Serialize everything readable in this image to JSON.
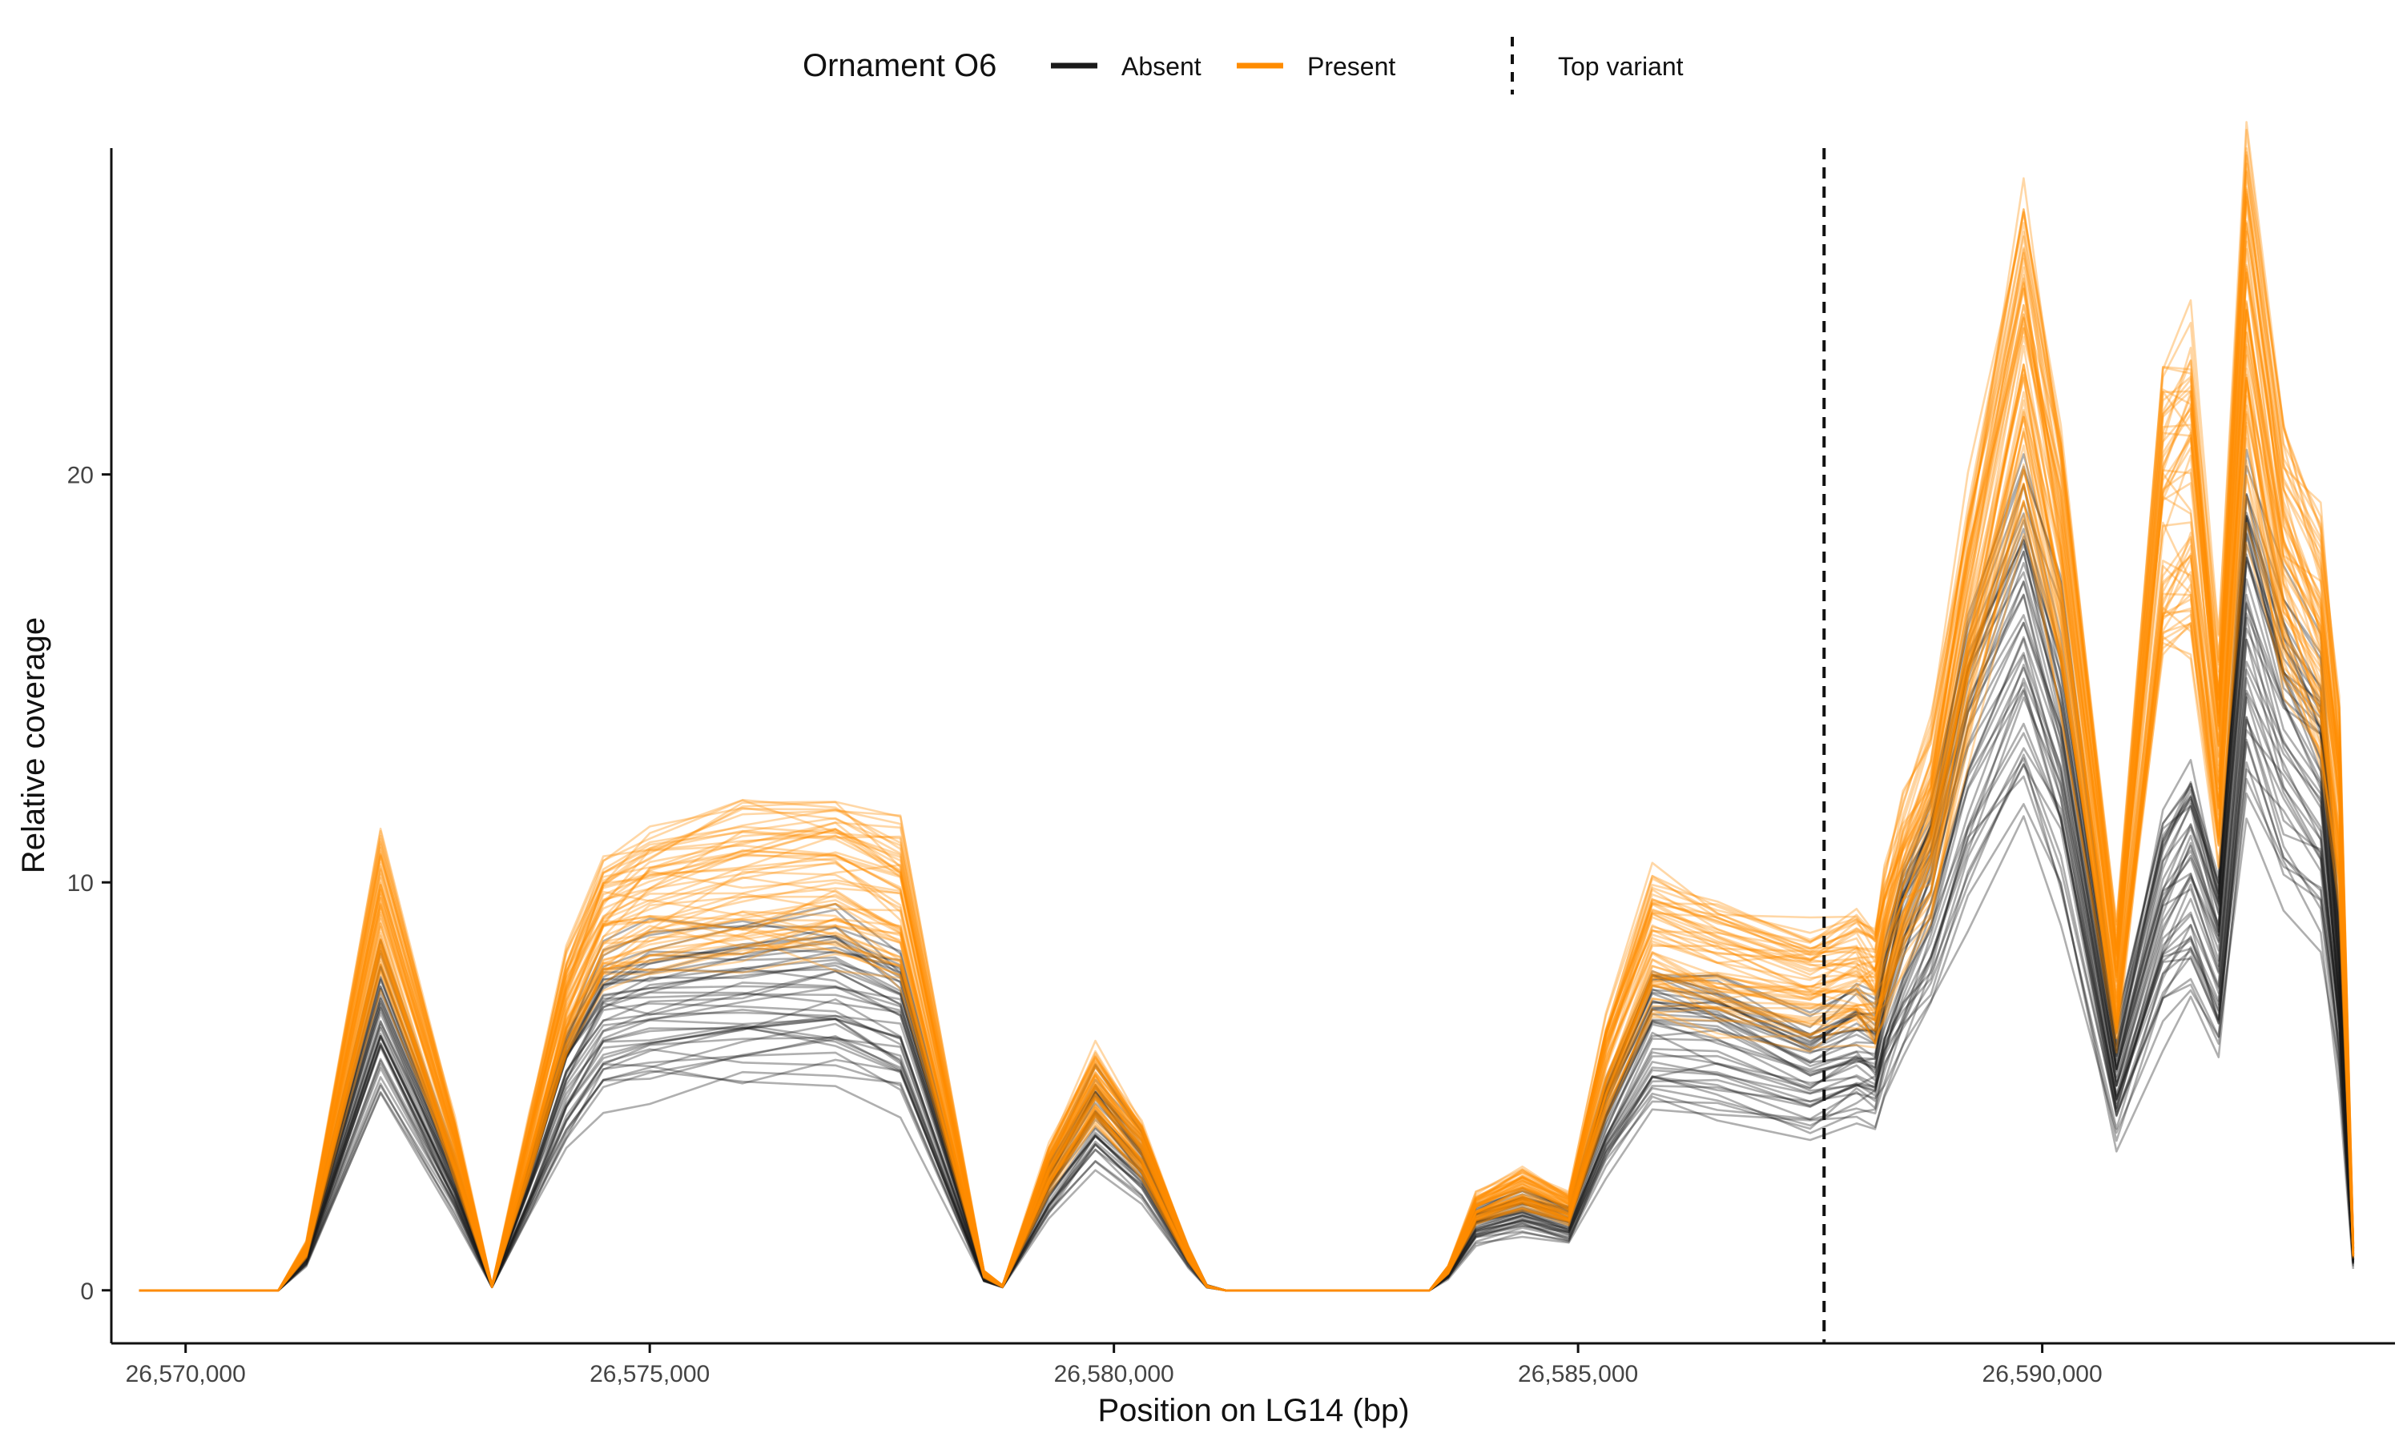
{
  "chart_data": {
    "type": "line",
    "title": "",
    "xlabel": "Position on LG14 (bp)",
    "ylabel": "Relative coverage",
    "xlim": [
      26569200,
      26593800
    ],
    "ylim": [
      -1.3,
      28
    ],
    "x_ticks": [
      26570000,
      26575000,
      26580000,
      26585000,
      26590000
    ],
    "x_tick_labels": [
      "26,570,000",
      "26,575,000",
      "26,580,000",
      "26,585,000",
      "26,590,000"
    ],
    "y_ticks": [
      0,
      10,
      20
    ],
    "y_tick_labels": [
      "0",
      "10",
      "20"
    ],
    "grid": false,
    "legend": {
      "placement": "top",
      "title": "Ornament O6",
      "entries": [
        {
          "label": "Absent",
          "color": "#1a1a1a"
        },
        {
          "label": "Present",
          "color": "#ff8c00"
        }
      ],
      "line_entry": {
        "label": "Top variant",
        "style": "dashed"
      }
    },
    "vline": {
      "x": 26587650,
      "label": "Top variant",
      "style": "dashed"
    },
    "series": [
      {
        "group": "Absent",
        "color": "#1a1a1a",
        "representative_values": {
          "x": [
            26569500,
            26571000,
            26571300,
            26572100,
            26572900,
            26573300,
            26573700,
            26574100,
            26574500,
            26575000,
            26576000,
            26577000,
            26577700,
            26578600,
            26578800,
            26579300,
            26579800,
            26580300,
            26580800,
            26581000,
            26581200,
            26583400,
            26583600,
            26583900,
            26584400,
            26584900,
            26585300,
            26585800,
            26586500,
            26587500,
            26588000,
            26588200,
            26588300,
            26588500,
            26588800,
            26589200,
            26589800,
            26590200,
            26590800,
            26591300,
            26591600,
            26591900,
            26592200,
            26592600,
            26593000,
            26593200,
            26593350
          ],
          "y": [
            0,
            0,
            0.8,
            6.5,
            2.5,
            0.1,
            2.5,
            5.0,
            6.5,
            6.8,
            7.0,
            7.1,
            6.4,
            0.3,
            0.1,
            2.5,
            4.2,
            3.0,
            0.8,
            0.1,
            0,
            0,
            0.4,
            1.6,
            1.9,
            1.6,
            4.0,
            6.2,
            6.0,
            5.2,
            5.7,
            5.5,
            6.5,
            8.0,
            9.5,
            13.0,
            16.0,
            13.0,
            5.0,
            9.0,
            10.0,
            8.0,
            16.0,
            13.5,
            12.0,
            7.0,
            0.8
          ]
        }
      },
      {
        "group": "Present",
        "color": "#ff8c00",
        "representative_values": {
          "x": [
            26569500,
            26571000,
            26571300,
            26572100,
            26572900,
            26573300,
            26573700,
            26574100,
            26574500,
            26575000,
            26576000,
            26577000,
            26577700,
            26578600,
            26578800,
            26579300,
            26579800,
            26580300,
            26580800,
            26581000,
            26581200,
            26583400,
            26583600,
            26583900,
            26584400,
            26584900,
            26585300,
            26585800,
            26586500,
            26587500,
            26588000,
            26588200,
            26588300,
            26588500,
            26588800,
            26589200,
            26589800,
            26590200,
            26590800,
            26591300,
            26591600,
            26591900,
            26592200,
            26592600,
            26593000,
            26593200,
            26593350
          ],
          "y": [
            0,
            0,
            1.0,
            9.5,
            3.5,
            0.1,
            3.5,
            7.0,
            9.0,
            9.5,
            10.0,
            10.2,
            9.5,
            0.4,
            0.1,
            3.0,
            5.0,
            3.5,
            0.9,
            0.1,
            0,
            0,
            0.5,
            2.0,
            2.5,
            2.0,
            5.5,
            8.5,
            8.0,
            7.5,
            7.8,
            7.5,
            8.5,
            10.0,
            11.5,
            16.5,
            23.0,
            18.0,
            7.5,
            19.0,
            19.5,
            13.0,
            24.0,
            18.0,
            16.0,
            12.0,
            1.0
          ]
        }
      }
    ]
  }
}
